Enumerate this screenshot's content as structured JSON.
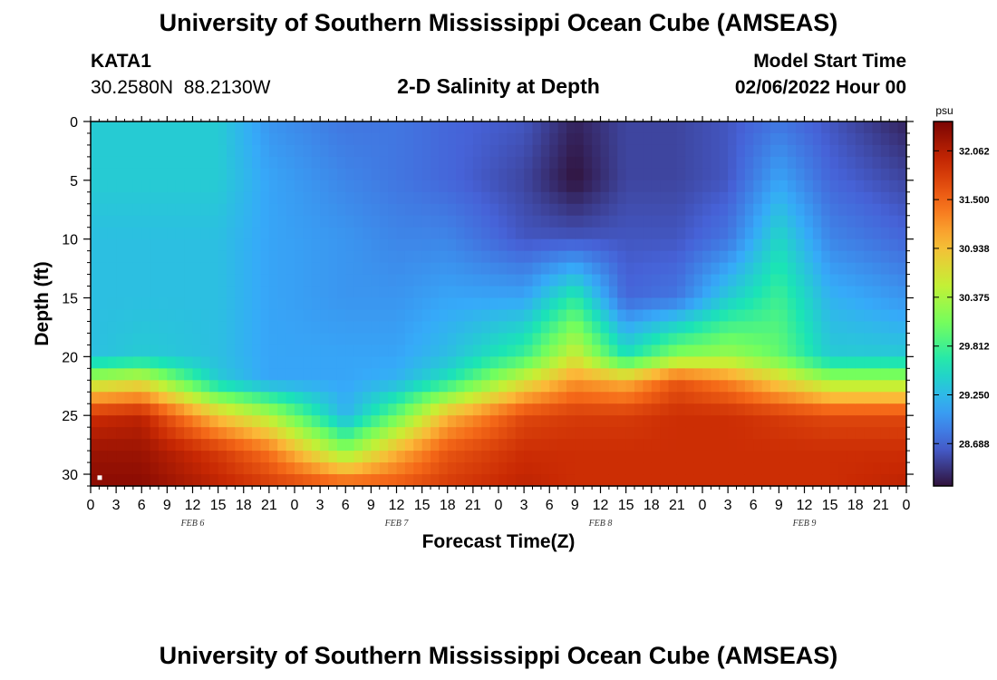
{
  "header": {
    "title": "University of Southern Mississippi Ocean Cube (AMSEAS)",
    "station": "KATA1",
    "coords": "30.2580N  88.2130W",
    "subtitle": "2-D Salinity at Depth",
    "model_start_label": "Model Start Time",
    "model_start_value": "02/06/2022 Hour 00"
  },
  "footer": {
    "title": "University of Southern Mississippi Ocean Cube (AMSEAS)"
  },
  "chart_data": {
    "type": "heatmap",
    "title": "2-D Salinity at Depth",
    "xlabel": "Forecast Time(Z)",
    "ylabel": "Depth (ft)",
    "x_ticks": [
      "0",
      "3",
      "6",
      "9",
      "12",
      "15",
      "18",
      "21",
      "0",
      "3",
      "6",
      "9",
      "12",
      "15",
      "18",
      "21",
      "0",
      "3",
      "6",
      "9",
      "12",
      "15",
      "18",
      "21",
      "0",
      "3",
      "6",
      "9",
      "12",
      "15",
      "18",
      "21",
      "0"
    ],
    "date_labels": [
      "FEB 6",
      "FEB 7",
      "FEB 8",
      "FEB 9"
    ],
    "y_ticks": [
      0,
      5,
      10,
      15,
      20,
      25,
      30
    ],
    "ylim": [
      0,
      31
    ],
    "xlim_hours": [
      0,
      96
    ],
    "colorbar": {
      "unit": "psu",
      "ticks": [
        "32.062",
        "31.500",
        "30.938",
        "30.375",
        "29.812",
        "29.250",
        "28.688"
      ],
      "vmin": 28.2,
      "vmax": 32.4
    },
    "depths_ft": [
      0,
      5,
      10,
      15,
      20,
      22,
      25,
      28,
      31
    ],
    "profiles": [
      {
        "hour": 0,
        "values": [
          29.4,
          29.4,
          29.3,
          29.3,
          29.3,
          30.4,
          31.9,
          32.2,
          32.3
        ]
      },
      {
        "hour": 6,
        "values": [
          29.4,
          29.4,
          29.3,
          29.3,
          29.4,
          30.6,
          32.0,
          32.2,
          32.3
        ]
      },
      {
        "hour": 15,
        "values": [
          29.4,
          29.4,
          29.3,
          29.3,
          29.3,
          29.4,
          30.9,
          31.8,
          32.0
        ]
      },
      {
        "hour": 21,
        "values": [
          29.0,
          29.1,
          29.1,
          29.1,
          29.1,
          29.1,
          30.4,
          31.4,
          31.8
        ]
      },
      {
        "hour": 30,
        "values": [
          28.8,
          28.9,
          29.0,
          29.0,
          29.1,
          29.1,
          29.2,
          30.2,
          31.6
        ]
      },
      {
        "hour": 36,
        "values": [
          28.8,
          28.8,
          28.9,
          29.0,
          29.1,
          29.2,
          30.0,
          31.0,
          31.6
        ]
      },
      {
        "hour": 42,
        "values": [
          28.7,
          28.7,
          28.9,
          29.1,
          29.3,
          29.6,
          31.0,
          31.6,
          31.8
        ]
      },
      {
        "hour": 51,
        "values": [
          28.6,
          28.5,
          28.6,
          29.1,
          29.8,
          30.6,
          31.7,
          31.9,
          32.0
        ]
      },
      {
        "hour": 57,
        "values": [
          28.3,
          28.2,
          28.6,
          29.7,
          30.6,
          31.2,
          31.8,
          31.9,
          31.9
        ]
      },
      {
        "hour": 63,
        "values": [
          28.5,
          28.5,
          28.6,
          28.7,
          29.6,
          31.0,
          31.8,
          31.9,
          31.9
        ]
      },
      {
        "hour": 69,
        "values": [
          28.5,
          28.5,
          28.6,
          28.8,
          30.2,
          31.6,
          31.9,
          31.9,
          31.9
        ]
      },
      {
        "hour": 75,
        "values": [
          28.6,
          28.6,
          28.8,
          29.4,
          30.3,
          31.3,
          31.9,
          31.9,
          31.9
        ]
      },
      {
        "hour": 81,
        "values": [
          28.8,
          29.1,
          29.5,
          29.8,
          30.0,
          30.8,
          31.8,
          31.9,
          31.9
        ]
      },
      {
        "hour": 87,
        "values": [
          28.6,
          28.7,
          28.9,
          29.2,
          29.4,
          30.3,
          31.7,
          31.9,
          31.9
        ]
      },
      {
        "hour": 96,
        "values": [
          28.3,
          28.5,
          28.7,
          29.0,
          29.4,
          30.3,
          31.7,
          31.9,
          32.0
        ]
      }
    ]
  },
  "colors": {
    "turbo_stops": [
      "#30123b",
      "#4662d7",
      "#36aaf9",
      "#1ae4b6",
      "#72fe5e",
      "#c7ef34",
      "#fbb938",
      "#f56918",
      "#c92903",
      "#7a0403"
    ]
  }
}
